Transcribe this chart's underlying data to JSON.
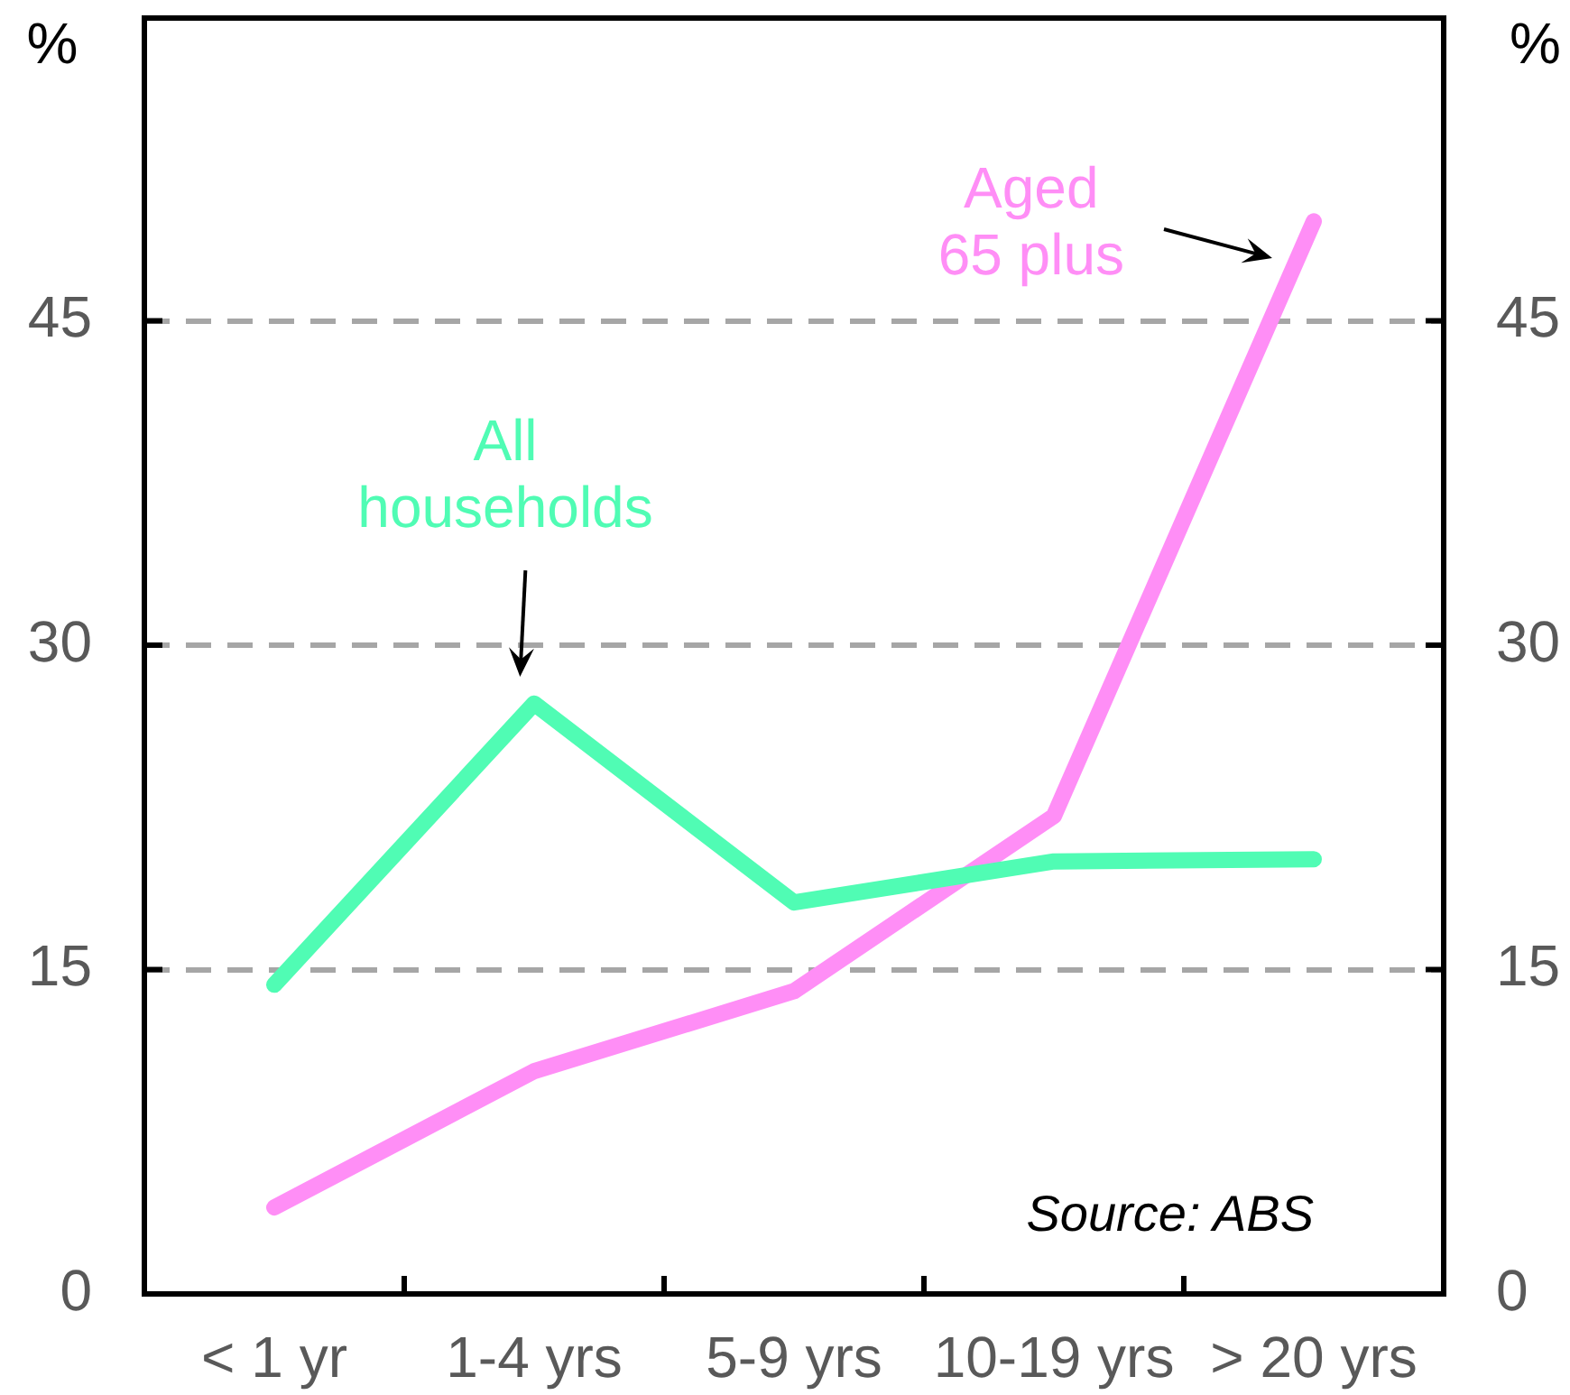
{
  "chart_data": {
    "type": "line",
    "categories": [
      "< 1 yr",
      "1-4 yrs",
      "5-9 yrs",
      "10-19 yrs",
      "> 20 yrs"
    ],
    "series": [
      {
        "name": "All households",
        "color": "#50fcb4",
        "values": [
          14.3,
          27.3,
          18.1,
          20,
          20.1
        ]
      },
      {
        "name": "Aged 65 plus",
        "color": "#ff8ef6",
        "values": [
          4,
          10.3,
          14,
          22.1,
          49.6
        ]
      }
    ],
    "ylabel": "%",
    "y2label": "%",
    "ylim": [
      0,
      59
    ],
    "yticks": [
      0,
      15,
      30,
      45
    ],
    "y2lim": [
      0,
      59
    ],
    "y2ticks": [
      0,
      15,
      30,
      45
    ],
    "grid": "y",
    "legend": false,
    "annotations": [
      "Source: ABS"
    ]
  }
}
